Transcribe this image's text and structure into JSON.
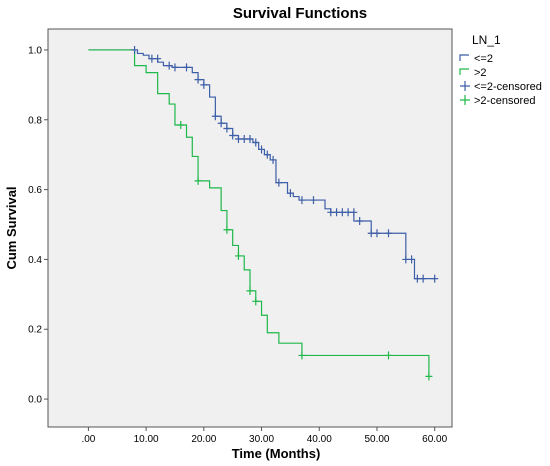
{
  "chart_data": {
    "type": "line",
    "title": "Survival Functions",
    "xlabel": "Time (Months)",
    "ylabel": "Cum Survival",
    "xlim": [
      -7,
      63
    ],
    "ylim": [
      -0.08,
      1.06
    ],
    "x_ticks": [
      ".00",
      "10.00",
      "20.00",
      "30.00",
      "40.00",
      "50.00",
      "60.00"
    ],
    "x_tick_values": [
      0,
      10,
      20,
      30,
      40,
      50,
      60
    ],
    "y_ticks": [
      "0.0",
      "0.2",
      "0.4",
      "0.6",
      "0.8",
      "1.0"
    ],
    "y_tick_values": [
      0,
      0.2,
      0.4,
      0.6,
      0.8,
      1.0
    ],
    "grid": false,
    "legend_position": "top-right",
    "legend_title": "LN_1",
    "legend_entries": [
      "<=2",
      ">2",
      "<=2-censored",
      ">2-censored"
    ],
    "series": [
      {
        "name": "<=2",
        "color": "#3d5ea8",
        "steps": [
          [
            0,
            1.0
          ],
          [
            8.5,
            0.99
          ],
          [
            9.5,
            0.985
          ],
          [
            10.5,
            0.975
          ],
          [
            12,
            0.965
          ],
          [
            13,
            0.955
          ],
          [
            14.5,
            0.95
          ],
          [
            18,
            0.935
          ],
          [
            19,
            0.915
          ],
          [
            20,
            0.9
          ],
          [
            21,
            0.865
          ],
          [
            22,
            0.81
          ],
          [
            23,
            0.79
          ],
          [
            24,
            0.775
          ],
          [
            25,
            0.755
          ],
          [
            26,
            0.745
          ],
          [
            28.5,
            0.735
          ],
          [
            29.5,
            0.715
          ],
          [
            30.5,
            0.7
          ],
          [
            31.5,
            0.685
          ],
          [
            32.5,
            0.62
          ],
          [
            34.5,
            0.59
          ],
          [
            35.5,
            0.58
          ],
          [
            36.5,
            0.57
          ],
          [
            41,
            0.545
          ],
          [
            42,
            0.535
          ],
          [
            46,
            0.51
          ],
          [
            49,
            0.475
          ],
          [
            55,
            0.4
          ],
          [
            56.5,
            0.345
          ]
        ],
        "end_x": 60
      },
      {
        "name": ">2",
        "color": "#1fb84a",
        "steps": [
          [
            0,
            1.0
          ],
          [
            8,
            0.955
          ],
          [
            10,
            0.935
          ],
          [
            12,
            0.875
          ],
          [
            14,
            0.845
          ],
          [
            15,
            0.785
          ],
          [
            17,
            0.75
          ],
          [
            18,
            0.695
          ],
          [
            19,
            0.625
          ],
          [
            21,
            0.605
          ],
          [
            23,
            0.54
          ],
          [
            24,
            0.485
          ],
          [
            25,
            0.44
          ],
          [
            26,
            0.41
          ],
          [
            27,
            0.37
          ],
          [
            28,
            0.31
          ],
          [
            29,
            0.28
          ],
          [
            30,
            0.24
          ],
          [
            31,
            0.19
          ],
          [
            33,
            0.16
          ],
          [
            37,
            0.125
          ],
          [
            59,
            0.065
          ]
        ],
        "end_x": 59
      }
    ],
    "censored": [
      {
        "name": "<=2-censored",
        "color": "#3d5ea8",
        "points": [
          [
            8,
            1.0
          ],
          [
            11,
            0.975
          ],
          [
            12,
            0.975
          ],
          [
            14,
            0.955
          ],
          [
            15,
            0.95
          ],
          [
            17,
            0.95
          ],
          [
            19,
            0.915
          ],
          [
            20,
            0.9
          ],
          [
            22,
            0.81
          ],
          [
            23,
            0.79
          ],
          [
            24,
            0.775
          ],
          [
            25,
            0.755
          ],
          [
            26,
            0.745
          ],
          [
            27,
            0.745
          ],
          [
            28,
            0.745
          ],
          [
            29,
            0.735
          ],
          [
            30,
            0.715
          ],
          [
            31,
            0.7
          ],
          [
            32,
            0.685
          ],
          [
            33,
            0.62
          ],
          [
            35,
            0.59
          ],
          [
            37,
            0.57
          ],
          [
            39,
            0.57
          ],
          [
            42,
            0.535
          ],
          [
            43,
            0.535
          ],
          [
            44,
            0.535
          ],
          [
            45,
            0.535
          ],
          [
            46,
            0.535
          ],
          [
            47,
            0.51
          ],
          [
            49,
            0.475
          ],
          [
            50,
            0.475
          ],
          [
            52,
            0.475
          ],
          [
            55,
            0.4
          ],
          [
            56,
            0.4
          ],
          [
            57,
            0.345
          ],
          [
            58,
            0.345
          ],
          [
            60,
            0.345
          ]
        ]
      },
      {
        "name": ">2-censored",
        "color": "#1fb84a",
        "points": [
          [
            16,
            0.785
          ],
          [
            19,
            0.625
          ],
          [
            24,
            0.485
          ],
          [
            26,
            0.41
          ],
          [
            28,
            0.31
          ],
          [
            29,
            0.28
          ],
          [
            37,
            0.125
          ],
          [
            52,
            0.125
          ],
          [
            59,
            0.065
          ]
        ]
      }
    ]
  }
}
